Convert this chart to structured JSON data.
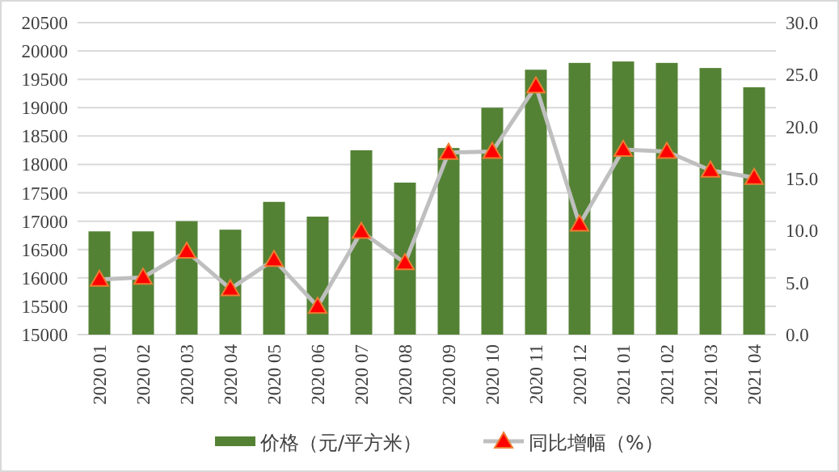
{
  "chart_data": {
    "type": "bar",
    "categories": [
      "2020 01",
      "2020 02",
      "2020 03",
      "2020 04",
      "2020 05",
      "2020 06",
      "2020 07",
      "2020 08",
      "2020 09",
      "2020 10",
      "2020 11",
      "2020 12",
      "2021 01",
      "2021 02",
      "2021 03",
      "2021 04"
    ],
    "series": [
      {
        "name": "价格（元/平方米）",
        "color": "#548235",
        "values": [
          16820,
          16820,
          17000,
          16850,
          17340,
          17080,
          18250,
          17680,
          18290,
          19000,
          19670,
          19790,
          19815,
          19790,
          19700,
          19360
        ]
      },
      {
        "name": "同比增幅（%）",
        "type": "line",
        "axis": "y2",
        "color": "#bfbfbf",
        "marker": "triangle",
        "values": [
          5.3,
          5.5,
          8.0,
          4.4,
          7.2,
          2.7,
          9.9,
          6.9,
          17.5,
          17.6,
          23.9,
          10.6,
          17.8,
          17.6,
          15.8,
          15.1
        ]
      }
    ],
    "ylim": [
      15000,
      20500
    ],
    "yticks": [
      15000,
      15500,
      16000,
      16500,
      17000,
      17500,
      18000,
      18500,
      19000,
      19500,
      20000,
      20500
    ],
    "y2lim": [
      0,
      30
    ],
    "y2ticks": [
      {
        "value": 0,
        "label": "0.0"
      },
      {
        "value": 5,
        "label": "5.0"
      },
      {
        "value": 10,
        "label": "10.0"
      },
      {
        "value": 15,
        "label": "15.0"
      },
      {
        "value": 20,
        "label": "20.0"
      },
      {
        "value": 25,
        "label": "25.0"
      },
      {
        "value": 30,
        "label": "30.0"
      }
    ],
    "grid": "y",
    "legend": "bottom"
  }
}
